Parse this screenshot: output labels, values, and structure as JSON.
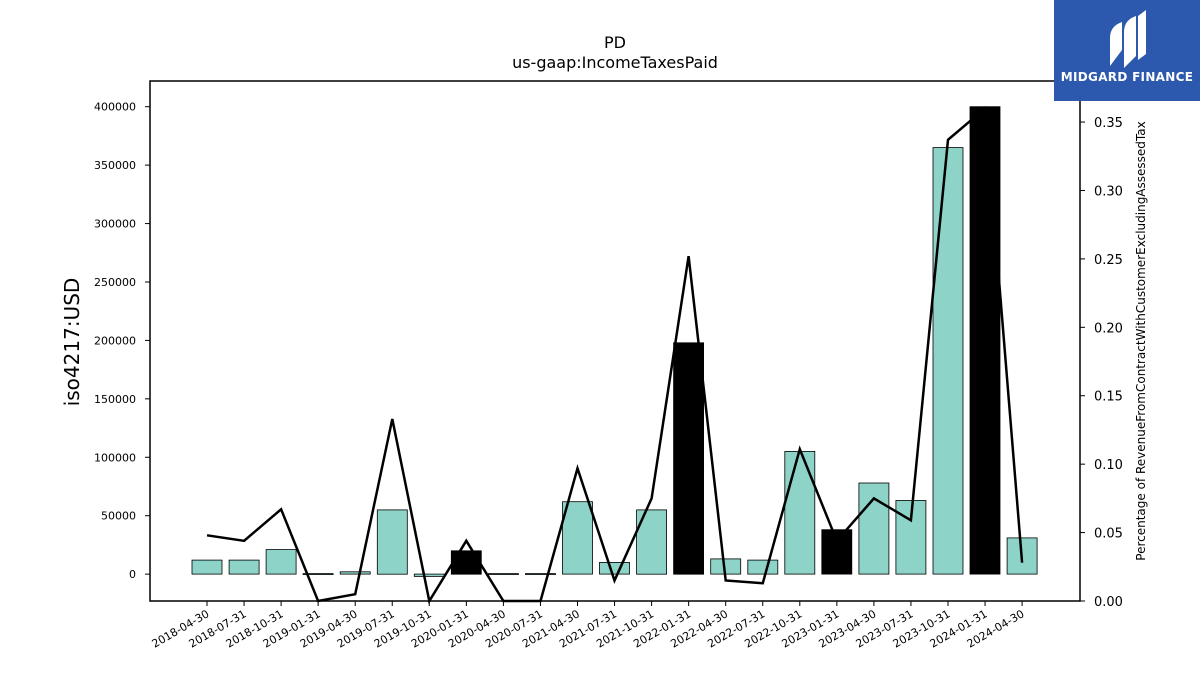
{
  "chart_data": {
    "type": "bar",
    "title": "PD",
    "subtitle": "us-gaap:IncomeTaxesPaid",
    "ylabel": "iso4217:USD",
    "y2label": "Percentage of RevenueFromContractWithCustomerExcludingAssessedTax",
    "ylim": [
      -23000,
      422000
    ],
    "y2lim": [
      0.0,
      0.38
    ],
    "categories": [
      "2018-04-30",
      "2018-07-31",
      "2018-10-31",
      "2019-01-31",
      "2019-04-30",
      "2019-07-31",
      "2019-10-31",
      "2020-01-31",
      "2020-04-30",
      "2020-07-31",
      "2021-04-30",
      "2021-07-31",
      "2021-10-31",
      "2022-01-31",
      "2022-04-30",
      "2022-07-31",
      "2022-10-31",
      "2023-01-31",
      "2023-04-30",
      "2023-07-31",
      "2023-10-31",
      "2024-01-31",
      "2024-04-30"
    ],
    "yticks": [
      0,
      50000,
      100000,
      150000,
      200000,
      250000,
      300000,
      350000,
      400000
    ],
    "y2ticks": [
      "0.00",
      "0.05",
      "0.10",
      "0.15",
      "0.20",
      "0.25",
      "0.30",
      "0.35"
    ],
    "series": [
      {
        "kind": "bar",
        "values": [
          12000,
          12000,
          21000,
          0,
          2000,
          55000,
          -2000,
          20000,
          0,
          0,
          62000,
          10000,
          55000,
          198000,
          13000,
          12000,
          105000,
          38000,
          78000,
          63000,
          365000,
          400000,
          31000
        ],
        "highlight": [
          false,
          false,
          false,
          false,
          false,
          false,
          false,
          true,
          false,
          false,
          false,
          false,
          false,
          true,
          false,
          false,
          false,
          true,
          false,
          false,
          false,
          true,
          false
        ]
      },
      {
        "kind": "line",
        "axis": "right",
        "values": [
          0.048,
          0.044,
          0.067,
          0.0,
          0.005,
          0.133,
          -0.005,
          0.044,
          0.0,
          0.0,
          0.097,
          0.015,
          0.075,
          0.252,
          0.015,
          0.013,
          0.111,
          0.044,
          0.075,
          0.059,
          0.337,
          0.36,
          0.028
        ]
      }
    ],
    "colors": {
      "bar": "#8dd3c7",
      "highlight": "#000000",
      "line": "#000000"
    }
  },
  "logo": {
    "text": "MIDGARD FINANCE"
  }
}
